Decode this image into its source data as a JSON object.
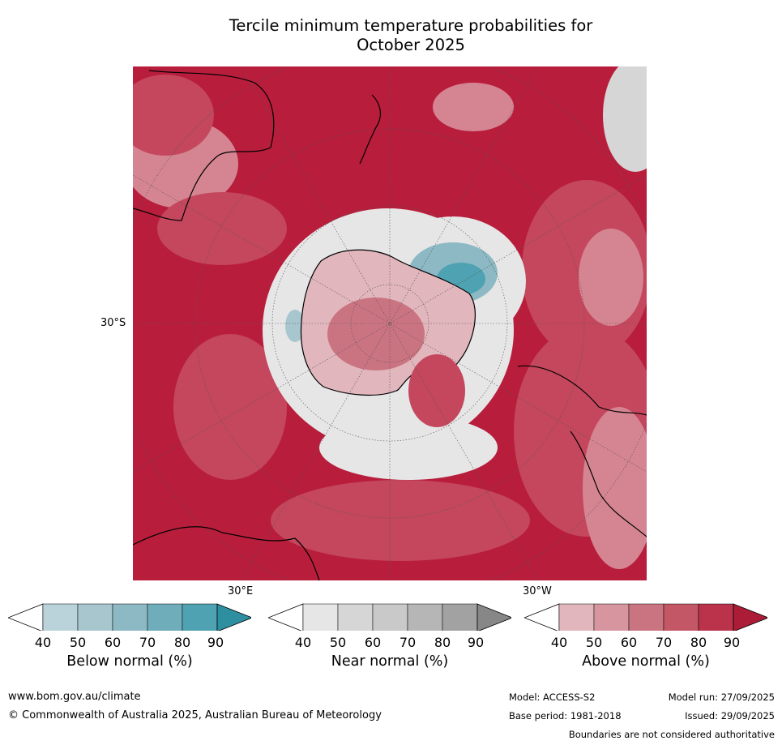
{
  "title_line1": "Tercile minimum temperature probabilities for",
  "title_line2": "October 2025",
  "map": {
    "lat_label": "30°S",
    "lon_labels": [
      "30°E",
      "30°W"
    ],
    "colors": {
      "strong_above": "#b81e3c",
      "above_mid": "#c4475d",
      "above_light": "#d58592",
      "near": "#e6e6e6",
      "below": "#6aaabb",
      "land_outline": "#000000"
    }
  },
  "colorbars": [
    {
      "label": "Below normal (%)",
      "ticks": [
        "40",
        "50",
        "60",
        "70",
        "80",
        "90"
      ],
      "colors": [
        "#bad3da",
        "#a7c6ce",
        "#8db9c4",
        "#6fadba",
        "#4ea2b1",
        "#2e8fa1"
      ]
    },
    {
      "label": "Near normal (%)",
      "ticks": [
        "40",
        "50",
        "60",
        "70",
        "80",
        "90"
      ],
      "colors": [
        "#e6e6e6",
        "#d6d6d6",
        "#c9c9c9",
        "#b6b6b6",
        "#a2a2a2",
        "#878787"
      ]
    },
    {
      "label": "Above normal (%)",
      "ticks": [
        "40",
        "50",
        "60",
        "70",
        "80",
        "90"
      ],
      "colors": [
        "#e1b6bd",
        "#d6959f",
        "#cb7481",
        "#c35766",
        "#ba334b",
        "#ac1c37"
      ]
    }
  ],
  "footer": {
    "website": "www.bom.gov.au/climate",
    "copyright": "© Commonwealth of Australia 2025, Australian Bureau of Meteorology",
    "model": "Model: ACCESS-S2",
    "model_run": "Model run: 27/09/2025",
    "base_period": "Base period: 1981-2018",
    "issued": "Issued: 29/09/2025",
    "disclaimer": "Boundaries are not considered authoritative"
  }
}
